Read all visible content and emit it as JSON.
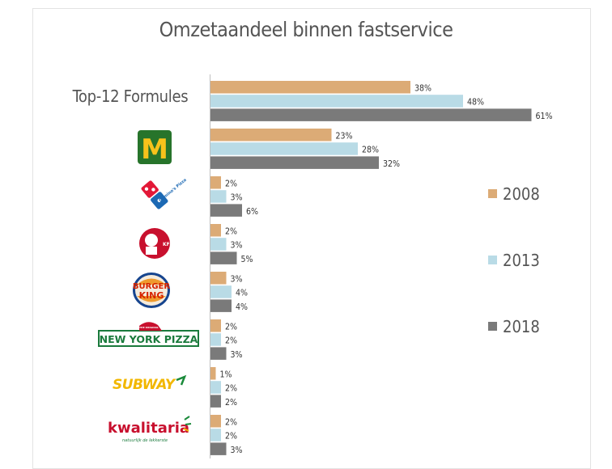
{
  "chart_data": {
    "type": "bar",
    "orientation": "horizontal",
    "title": "Omzetaandeel binnen fastservice",
    "categories": [
      "Top-12 Formules",
      "McDonald's",
      "Domino's Pizza",
      "KFC",
      "Burger King",
      "New York Pizza",
      "Subway",
      "Kwalitaria"
    ],
    "series": [
      {
        "name": "2008",
        "values": [
          38,
          23,
          2,
          2,
          3,
          2,
          1,
          2
        ],
        "color": "#dcab76"
      },
      {
        "name": "2013",
        "values": [
          48,
          28,
          3,
          3,
          4,
          2,
          2,
          2
        ],
        "color": "#b9dbe6"
      },
      {
        "name": "2018",
        "values": [
          61,
          32,
          6,
          5,
          4,
          3,
          2,
          3
        ],
        "color": "#7a7a7a"
      }
    ],
    "value_suffix": "%",
    "xlim": [
      0,
      70
    ],
    "grid": false,
    "legend_placement": "right",
    "logos": {
      "mcdonalds": "M",
      "dominos": "Domino's Pizza",
      "kfc": "KFC",
      "burgerking_top": "BURGER",
      "burgerking_bottom": "KING",
      "nyp": "NEW YORK PIZZA",
      "nyp_small": "THE ORIGINAL",
      "subway": "SUBWAY",
      "kwalitaria": "kwalitaria",
      "kwalitaria_tagline": "natuurlijk de lekkerste"
    }
  }
}
